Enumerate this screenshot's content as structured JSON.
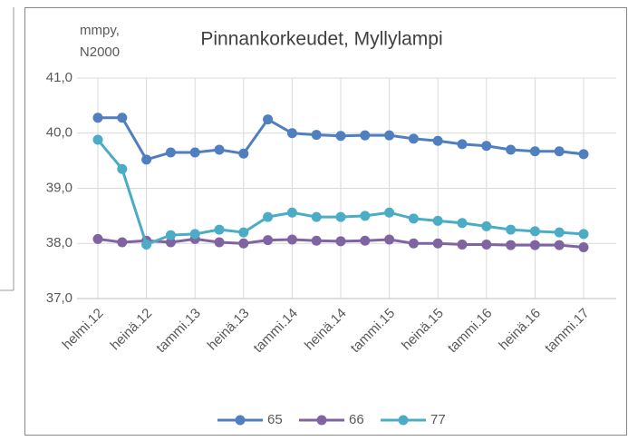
{
  "chart_data": {
    "type": "line",
    "title": "Pinnankorkeudet, Myllylampi",
    "ylabel": [
      "mmpy,",
      "N2000"
    ],
    "categories": [
      "helmi.12",
      null,
      "heinä.12",
      null,
      "tammi.13",
      null,
      "heinä.13",
      null,
      "tammi.14",
      null,
      "heinä.14",
      null,
      "tammi.15",
      null,
      "heinä.15",
      null,
      "tammi.16",
      null,
      "heinä.16",
      null,
      "tammi.17"
    ],
    "series": [
      {
        "name": "65",
        "color": "#4f7fbf",
        "values": [
          40.28,
          40.28,
          39.52,
          39.65,
          39.65,
          39.7,
          39.63,
          40.25,
          40.0,
          39.97,
          39.95,
          39.96,
          39.96,
          39.9,
          39.86,
          39.8,
          39.77,
          39.7,
          39.67,
          39.67,
          39.62
        ]
      },
      {
        "name": "66",
        "color": "#8064a2",
        "values": [
          38.08,
          38.02,
          38.05,
          38.02,
          38.08,
          38.02,
          38.0,
          38.06,
          38.07,
          38.05,
          38.04,
          38.05,
          38.07,
          38.0,
          38.0,
          37.98,
          37.98,
          37.97,
          37.97,
          37.97,
          37.93
        ]
      },
      {
        "name": "77",
        "color": "#4bacc6",
        "values": [
          39.88,
          39.35,
          37.98,
          38.15,
          38.17,
          38.25,
          38.2,
          38.48,
          38.56,
          38.48,
          38.48,
          38.5,
          38.56,
          38.45,
          38.41,
          38.37,
          38.31,
          38.25,
          38.22,
          38.2,
          38.17
        ]
      }
    ],
    "ylim": [
      37,
      41
    ],
    "yticks": [
      {
        "value": 37,
        "label": "37,0"
      },
      {
        "value": 38,
        "label": "38,0"
      },
      {
        "value": 39,
        "label": "39,0"
      },
      {
        "value": 40,
        "label": "40,0"
      },
      {
        "value": 41,
        "label": "41,0"
      }
    ],
    "grid": true
  }
}
